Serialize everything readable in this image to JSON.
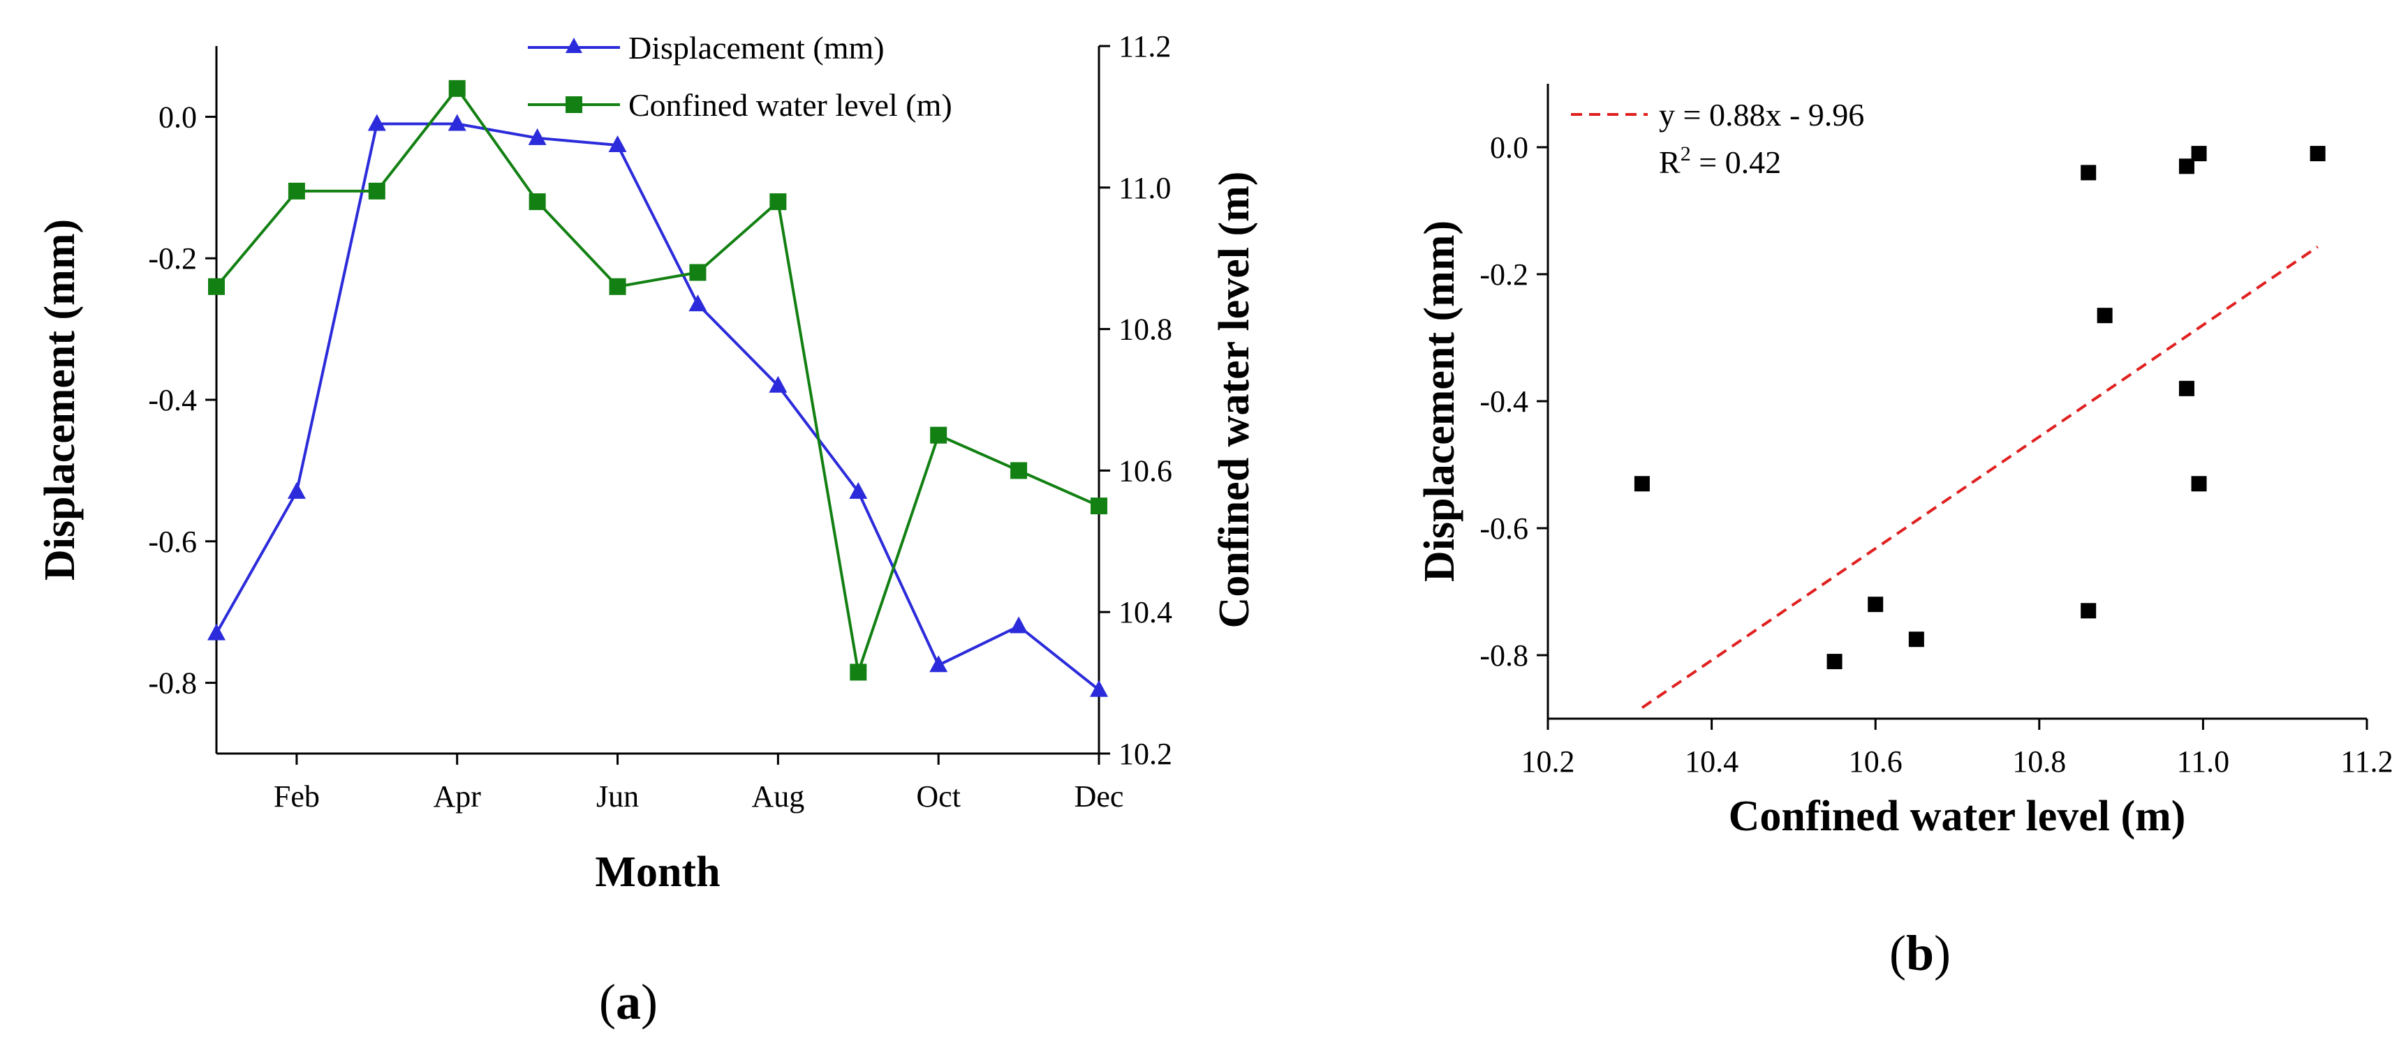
{
  "figure": {
    "panel_a_label": "(a)",
    "panel_b_label": "(b)",
    "panel_a_label_letter": "a",
    "panel_b_label_letter": "b"
  },
  "chart_data": [
    {
      "type": "line",
      "title": "",
      "xlabel": "Month",
      "ylabel": "Displacement (mm)",
      "y2label": "Confined water level (m)",
      "x": [
        1,
        2,
        3,
        4,
        5,
        6,
        7,
        8,
        9,
        10,
        11,
        12
      ],
      "xlim": [
        1,
        12
      ],
      "xticks": [
        2,
        4,
        6,
        8,
        10,
        12
      ],
      "xtick_labels": [
        "Feb",
        "Apr",
        "Jun",
        "Aug",
        "Oct",
        "Dec"
      ],
      "ylim": [
        -0.9,
        0.1
      ],
      "yticks": [
        0.0,
        -0.2,
        -0.4,
        -0.6,
        -0.8
      ],
      "ytick_labels": [
        "0.0",
        "-0.2",
        "-0.4",
        "-0.6",
        "-0.8"
      ],
      "y2lim": [
        10.2,
        11.2
      ],
      "y2ticks": [
        10.2,
        10.4,
        10.6,
        10.8,
        11.0,
        11.2
      ],
      "y2tick_labels": [
        "10.2",
        "10.4",
        "10.6",
        "10.8",
        "11.0",
        "11.2"
      ],
      "legend_position": "top",
      "series": [
        {
          "name": "Displacement (mm)",
          "axis": "left",
          "color": "#2b2bdb",
          "marker": "triangle",
          "values": [
            -0.73,
            -0.53,
            -0.01,
            -0.01,
            -0.03,
            -0.04,
            -0.265,
            -0.38,
            -0.53,
            -0.775,
            -0.72,
            -0.81
          ]
        },
        {
          "name": "Confined water level (m)",
          "axis": "right",
          "color": "#128012",
          "marker": "square",
          "values": [
            10.86,
            10.995,
            10.995,
            11.14,
            10.98,
            10.86,
            10.88,
            10.98,
            10.315,
            10.65,
            10.6,
            10.55
          ]
        }
      ]
    },
    {
      "type": "scatter",
      "title": "",
      "xlabel": "Confined water level (m)",
      "ylabel": "Displacement (mm)",
      "xlim": [
        10.2,
        11.2
      ],
      "xticks": [
        10.2,
        10.4,
        10.6,
        10.8,
        11.0,
        11.2
      ],
      "xtick_labels": [
        "10.2",
        "10.4",
        "10.6",
        "10.8",
        "11.0",
        "11.2"
      ],
      "ylim": [
        -0.9,
        0.1
      ],
      "yticks": [
        0.0,
        -0.2,
        -0.4,
        -0.6,
        -0.8
      ],
      "ytick_labels": [
        "0.0",
        "-0.2",
        "-0.4",
        "-0.6",
        "-0.8"
      ],
      "points": [
        {
          "x": 10.315,
          "y": -0.53
        },
        {
          "x": 10.55,
          "y": -0.81
        },
        {
          "x": 10.6,
          "y": -0.72
        },
        {
          "x": 10.65,
          "y": -0.775
        },
        {
          "x": 10.86,
          "y": -0.73
        },
        {
          "x": 10.86,
          "y": -0.04
        },
        {
          "x": 10.88,
          "y": -0.265
        },
        {
          "x": 10.98,
          "y": -0.03
        },
        {
          "x": 10.98,
          "y": -0.38
        },
        {
          "x": 10.995,
          "y": -0.01
        },
        {
          "x": 10.995,
          "y": -0.53
        },
        {
          "x": 11.14,
          "y": -0.01
        }
      ],
      "marker_color": "#000000",
      "fit": {
        "slope": 0.88,
        "intercept": -9.96,
        "x_range": [
          10.315,
          11.14
        ],
        "color": "#e02020",
        "style": "dashed"
      },
      "legend": {
        "equation": "y = 0.88x - 9.96",
        "r2_prefix": "R",
        "r2_sup": "2",
        "r2_suffix": " = 0.42",
        "position": "top-left"
      }
    }
  ]
}
